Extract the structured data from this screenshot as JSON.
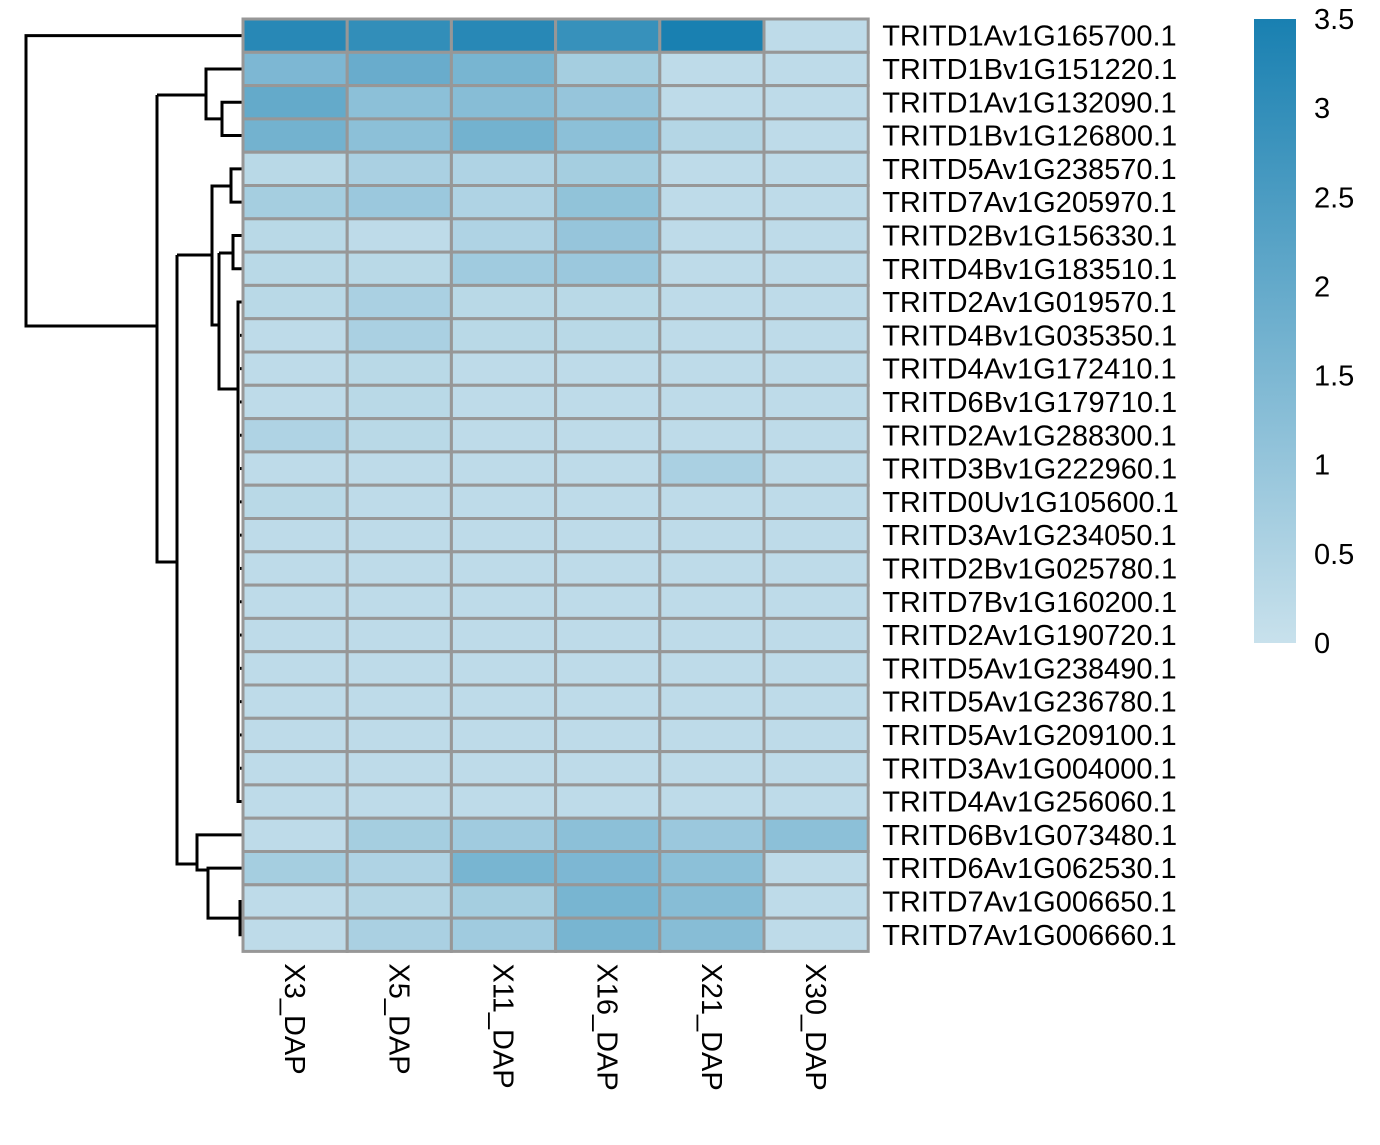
{
  "chart_data": {
    "type": "heatmap",
    "title": "",
    "xlabel": "",
    "ylabel": "",
    "columns": [
      "X3_DAP",
      "X5_DAP",
      "X11_DAP",
      "X16_DAP",
      "X21_DAP",
      "X30_DAP"
    ],
    "rows": [
      "TRITD1Av1G165700.1",
      "TRITD1Bv1G151220.1",
      "TRITD1Av1G132090.1",
      "TRITD1Bv1G126800.1",
      "TRITD5Av1G238570.1",
      "TRITD7Av1G205970.1",
      "TRITD2Bv1G156330.1",
      "TRITD4Bv1G183510.1",
      "TRITD2Av1G019570.1",
      "TRITD4Bv1G035350.1",
      "TRITD4Av1G172410.1",
      "TRITD6Bv1G179710.1",
      "TRITD2Av1G288300.1",
      "TRITD3Bv1G222960.1",
      "TRITD0Uv1G105600.1",
      "TRITD3Av1G234050.1",
      "TRITD2Bv1G025780.1",
      "TRITD7Bv1G160200.1",
      "TRITD2Av1G190720.1",
      "TRITD5Av1G238490.1",
      "TRITD5Av1G236780.1",
      "TRITD5Av1G209100.1",
      "TRITD3Av1G004000.1",
      "TRITD4Av1G256060.1",
      "TRITD6Bv1G073480.1",
      "TRITD6Av1G062530.1",
      "TRITD7Av1G006650.1",
      "TRITD7Av1G006660.1"
    ],
    "values": [
      [
        3.2,
        3.0,
        3.2,
        2.9,
        3.5,
        0.2
      ],
      [
        1.5,
        1.9,
        1.6,
        0.7,
        0.2,
        0.2
      ],
      [
        2.0,
        1.2,
        1.3,
        1.0,
        0.2,
        0.2
      ],
      [
        1.7,
        1.2,
        1.7,
        1.2,
        0.4,
        0.2
      ],
      [
        0.3,
        0.6,
        0.5,
        0.7,
        0.2,
        0.2
      ],
      [
        0.7,
        0.9,
        0.5,
        1.1,
        0.2,
        0.2
      ],
      [
        0.3,
        0.2,
        0.5,
        1.0,
        0.2,
        0.2
      ],
      [
        0.3,
        0.3,
        0.8,
        0.9,
        0.2,
        0.2
      ],
      [
        0.3,
        0.6,
        0.3,
        0.3,
        0.2,
        0.2
      ],
      [
        0.2,
        0.6,
        0.3,
        0.3,
        0.2,
        0.2
      ],
      [
        0.2,
        0.3,
        0.2,
        0.2,
        0.2,
        0.2
      ],
      [
        0.2,
        0.3,
        0.2,
        0.2,
        0.2,
        0.2
      ],
      [
        0.5,
        0.3,
        0.2,
        0.2,
        0.2,
        0.2
      ],
      [
        0.2,
        0.2,
        0.2,
        0.2,
        0.6,
        0.2
      ],
      [
        0.3,
        0.2,
        0.2,
        0.2,
        0.2,
        0.2
      ],
      [
        0.2,
        0.2,
        0.2,
        0.2,
        0.2,
        0.2
      ],
      [
        0.2,
        0.2,
        0.2,
        0.2,
        0.2,
        0.2
      ],
      [
        0.2,
        0.2,
        0.2,
        0.2,
        0.2,
        0.2
      ],
      [
        0.2,
        0.2,
        0.2,
        0.2,
        0.2,
        0.2
      ],
      [
        0.2,
        0.2,
        0.2,
        0.2,
        0.2,
        0.2
      ],
      [
        0.2,
        0.2,
        0.2,
        0.2,
        0.2,
        0.2
      ],
      [
        0.2,
        0.2,
        0.2,
        0.2,
        0.2,
        0.2
      ],
      [
        0.2,
        0.2,
        0.2,
        0.2,
        0.2,
        0.2
      ],
      [
        0.2,
        0.2,
        0.2,
        0.2,
        0.2,
        0.2
      ],
      [
        0.2,
        0.7,
        0.8,
        1.2,
        0.9,
        1.2
      ],
      [
        0.7,
        0.5,
        1.6,
        1.5,
        1.2,
        0.2
      ],
      [
        0.2,
        0.4,
        0.7,
        1.6,
        1.3,
        0.2
      ],
      [
        0.2,
        0.6,
        0.8,
        1.6,
        1.3,
        0.2
      ]
    ],
    "color_scale": {
      "range": [
        0,
        3.5
      ],
      "low_color": "#c8e1ec",
      "high_color": "#1980b1",
      "ticks": [
        0,
        0.5,
        1,
        1.5,
        2,
        2.5,
        3,
        3.5
      ],
      "tick_labels": [
        "0",
        "0.5",
        "1",
        "1.5",
        "2",
        "2.5",
        "3",
        "3.5"
      ]
    },
    "row_dendrogram": true,
    "legend_position": "right",
    "grid": true,
    "cell_border_color": "#979797"
  }
}
